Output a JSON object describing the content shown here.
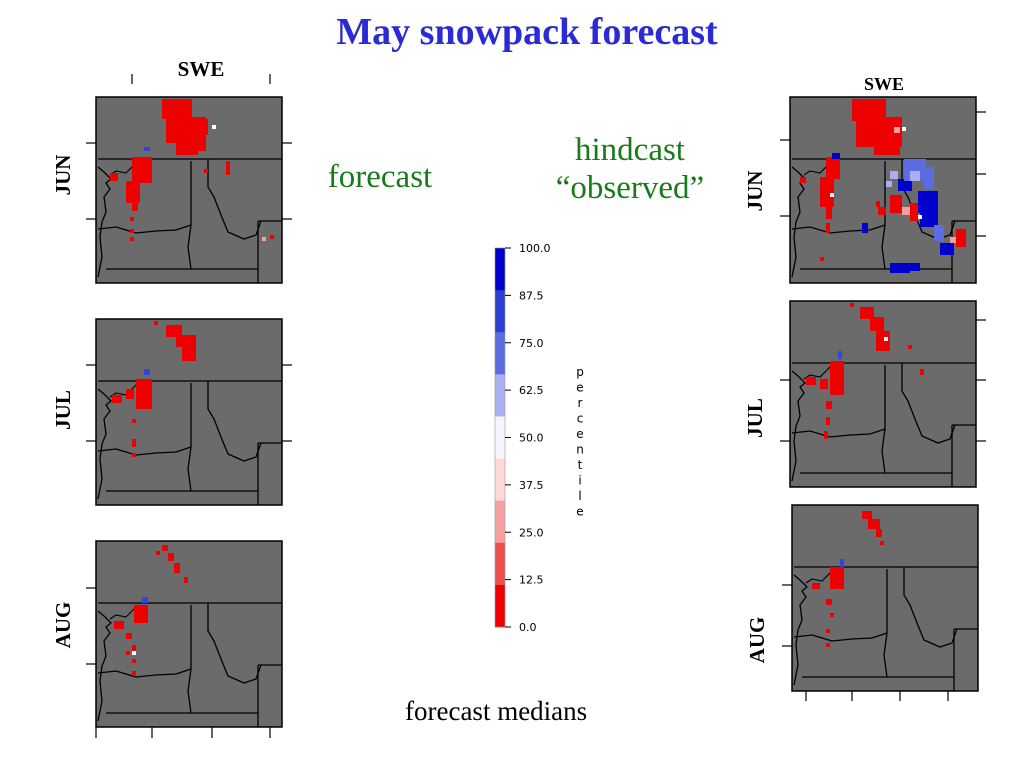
{
  "title": "May snowpack forecast",
  "labels": {
    "forecast": "forecast",
    "hindcast_line1": "hindcast",
    "hindcast_line2": "“observed”",
    "caption": "forecast medians"
  },
  "left_column": {
    "header": "SWE",
    "months": [
      "JUN",
      "JUL",
      "AUG"
    ]
  },
  "right_column": {
    "header": "SWE",
    "months": [
      "JUN",
      "JUL",
      "AUG"
    ]
  },
  "colorbar": {
    "axis_label": "percentile",
    "ticks": [
      "100.0",
      "87.5",
      "75.0",
      "62.5",
      "50.0",
      "37.5",
      "25.0",
      "12.5",
      "0.0"
    ],
    "bin_colors": [
      "#0000cc",
      "#2b3fd0",
      "#5b6de0",
      "#a8b0f0",
      "#f5f5ff",
      "#ffd8d8",
      "#f4a0a0",
      "#ee5050",
      "#ee0000"
    ]
  },
  "colors": {
    "map_background": "#6b6b6b",
    "border_lines": "#000000",
    "title": "#2b2bd6",
    "annotation": "#1a7a1a"
  }
}
